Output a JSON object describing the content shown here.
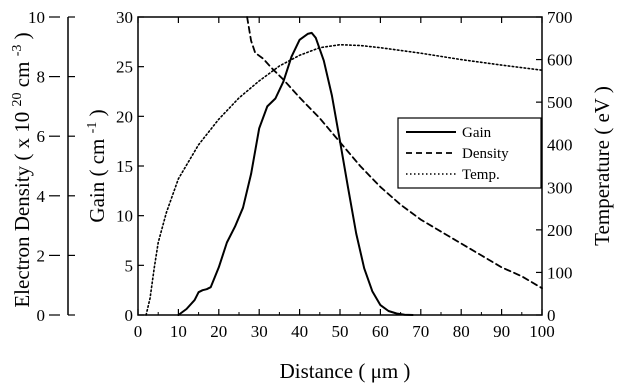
{
  "chart_data": {
    "type": "line",
    "x_axis": {
      "label_parts": [
        "Distance ( ",
        "μm",
        " )"
      ],
      "range": [
        0,
        100
      ],
      "ticks": [
        "0",
        "10",
        "20",
        "30",
        "40",
        "50",
        "60",
        "70",
        "80",
        "90",
        "100"
      ]
    },
    "y_axes": {
      "left_density": {
        "label_parts": [
          "Electron Density ( x 10 ",
          "20",
          " cm ",
          "-3",
          " )"
        ],
        "range": [
          0,
          10
        ],
        "ticks": [
          "0",
          "2",
          "4",
          "6",
          "8",
          "10"
        ]
      },
      "left_gain": {
        "label_parts": [
          "Gain ( cm ",
          "-1",
          " )"
        ],
        "range": [
          0,
          30
        ],
        "ticks": [
          "0",
          "5",
          "10",
          "15",
          "20",
          "25",
          "30"
        ]
      },
      "right_temperature": {
        "label": "Temperature ( eV )",
        "range": [
          0,
          700
        ],
        "ticks": [
          "0",
          "100",
          "200",
          "300",
          "400",
          "500",
          "600",
          "700"
        ]
      }
    },
    "legend": {
      "placement": "right-middle",
      "entries": [
        "Gain",
        "Density",
        "Temp."
      ]
    },
    "series": [
      {
        "name": "Gain",
        "axis": "left_gain",
        "style": "solid",
        "x": [
          10,
          12,
          14,
          15,
          16,
          17,
          18,
          20,
          22,
          24,
          26,
          28,
          30,
          32,
          34,
          36,
          38,
          40,
          42,
          43,
          44,
          46,
          48,
          50,
          52,
          54,
          56,
          58,
          60,
          62,
          64,
          66,
          68
        ],
        "y": [
          0,
          0.6,
          1.5,
          2.3,
          2.5,
          2.6,
          2.8,
          4.8,
          7.3,
          8.9,
          10.8,
          14.2,
          18.8,
          21.0,
          21.8,
          23.5,
          26.0,
          27.7,
          28.3,
          28.4,
          27.9,
          25.6,
          22.1,
          17.5,
          12.8,
          8.2,
          4.7,
          2.4,
          1.0,
          0.4,
          0.15,
          0.03,
          0
        ]
      },
      {
        "name": "Density",
        "axis": "left_density",
        "style": "dashed",
        "x": [
          27,
          28,
          29,
          31,
          33,
          36,
          40,
          45,
          50,
          55,
          60,
          65,
          70,
          75,
          80,
          85,
          90,
          95,
          100
        ],
        "y": [
          10.0,
          9.2,
          8.8,
          8.6,
          8.3,
          7.9,
          7.3,
          6.6,
          5.8,
          5.0,
          4.3,
          3.7,
          3.2,
          2.8,
          2.4,
          2.0,
          1.6,
          1.3,
          0.9
        ]
      },
      {
        "name": "Temp.",
        "axis": "right_temperature",
        "style": "dotted",
        "x": [
          2,
          3,
          4,
          5,
          7,
          10,
          15,
          20,
          25,
          30,
          35,
          40,
          45,
          50,
          55,
          60,
          70,
          80,
          90,
          100
        ],
        "y": [
          0,
          40,
          110,
          170,
          240,
          320,
          400,
          460,
          510,
          550,
          585,
          610,
          628,
          635,
          633,
          628,
          615,
          600,
          587,
          575
        ]
      }
    ]
  }
}
